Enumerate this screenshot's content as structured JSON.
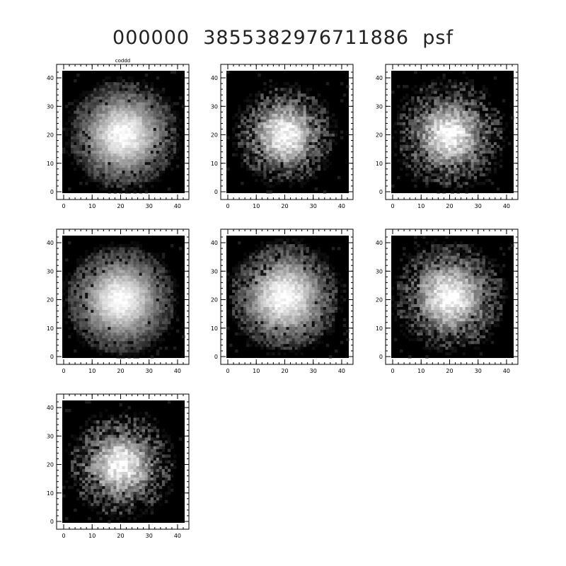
{
  "title": "000000  3855382976711886  psf",
  "colors": {
    "background": "#ffffff",
    "axis": "#000000",
    "image_bg": "#000000"
  },
  "chart_data": {
    "type": "heatmap",
    "title": "000000  3855382976711886  psf",
    "colormap": "grayscale",
    "panels": [
      {
        "id": "psf-1",
        "label": "coddd",
        "xlim": [
          0,
          42
        ],
        "ylim": [
          0,
          42
        ],
        "x_ticks": [
          0,
          10,
          20,
          30,
          40
        ],
        "y_ticks": [
          0,
          10,
          20,
          30,
          40
        ],
        "center": [
          21,
          20
        ],
        "core_radius": 10,
        "halo_radius": 19,
        "noise": 0.3
      },
      {
        "id": "psf-2",
        "label": "",
        "xlim": [
          0,
          42
        ],
        "ylim": [
          0,
          42
        ],
        "x_ticks": [
          0,
          10,
          20,
          30,
          40
        ],
        "y_ticks": [
          0,
          10,
          20,
          30,
          40
        ],
        "center": [
          20,
          20
        ],
        "core_radius": 8,
        "halo_radius": 17,
        "noise": 0.55
      },
      {
        "id": "psf-3",
        "label": "",
        "xlim": [
          0,
          42
        ],
        "ylim": [
          0,
          42
        ],
        "x_ticks": [
          0,
          10,
          20,
          30,
          40
        ],
        "y_ticks": [
          0,
          10,
          20,
          30,
          40
        ],
        "center": [
          20,
          20
        ],
        "core_radius": 8,
        "halo_radius": 19,
        "noise": 0.6
      },
      {
        "id": "psf-4",
        "label": "",
        "xlim": [
          0,
          42
        ],
        "ylim": [
          0,
          42
        ],
        "x_ticks": [
          0,
          10,
          20,
          30,
          40
        ],
        "y_ticks": [
          0,
          10,
          20,
          30,
          40
        ],
        "center": [
          20,
          20
        ],
        "core_radius": 10,
        "halo_radius": 19,
        "noise": 0.25
      },
      {
        "id": "psf-5",
        "label": "",
        "xlim": [
          0,
          42
        ],
        "ylim": [
          0,
          42
        ],
        "x_ticks": [
          0,
          10,
          20,
          30,
          40
        ],
        "y_ticks": [
          0,
          10,
          20,
          30,
          40
        ],
        "center": [
          20,
          21
        ],
        "core_radius": 10,
        "halo_radius": 19,
        "noise": 0.35
      },
      {
        "id": "psf-6",
        "label": "",
        "xlim": [
          0,
          42
        ],
        "ylim": [
          0,
          42
        ],
        "x_ticks": [
          0,
          10,
          20,
          30,
          40
        ],
        "y_ticks": [
          0,
          10,
          20,
          30,
          40
        ],
        "center": [
          20,
          21
        ],
        "core_radius": 9,
        "halo_radius": 19,
        "noise": 0.5
      },
      {
        "id": "psf-7",
        "label": "",
        "xlim": [
          0,
          42
        ],
        "ylim": [
          0,
          42
        ],
        "x_ticks": [
          0,
          10,
          20,
          30,
          40
        ],
        "y_ticks": [
          0,
          10,
          20,
          30,
          40
        ],
        "center": [
          20,
          20
        ],
        "core_radius": 8,
        "halo_radius": 18,
        "noise": 0.6
      }
    ]
  }
}
